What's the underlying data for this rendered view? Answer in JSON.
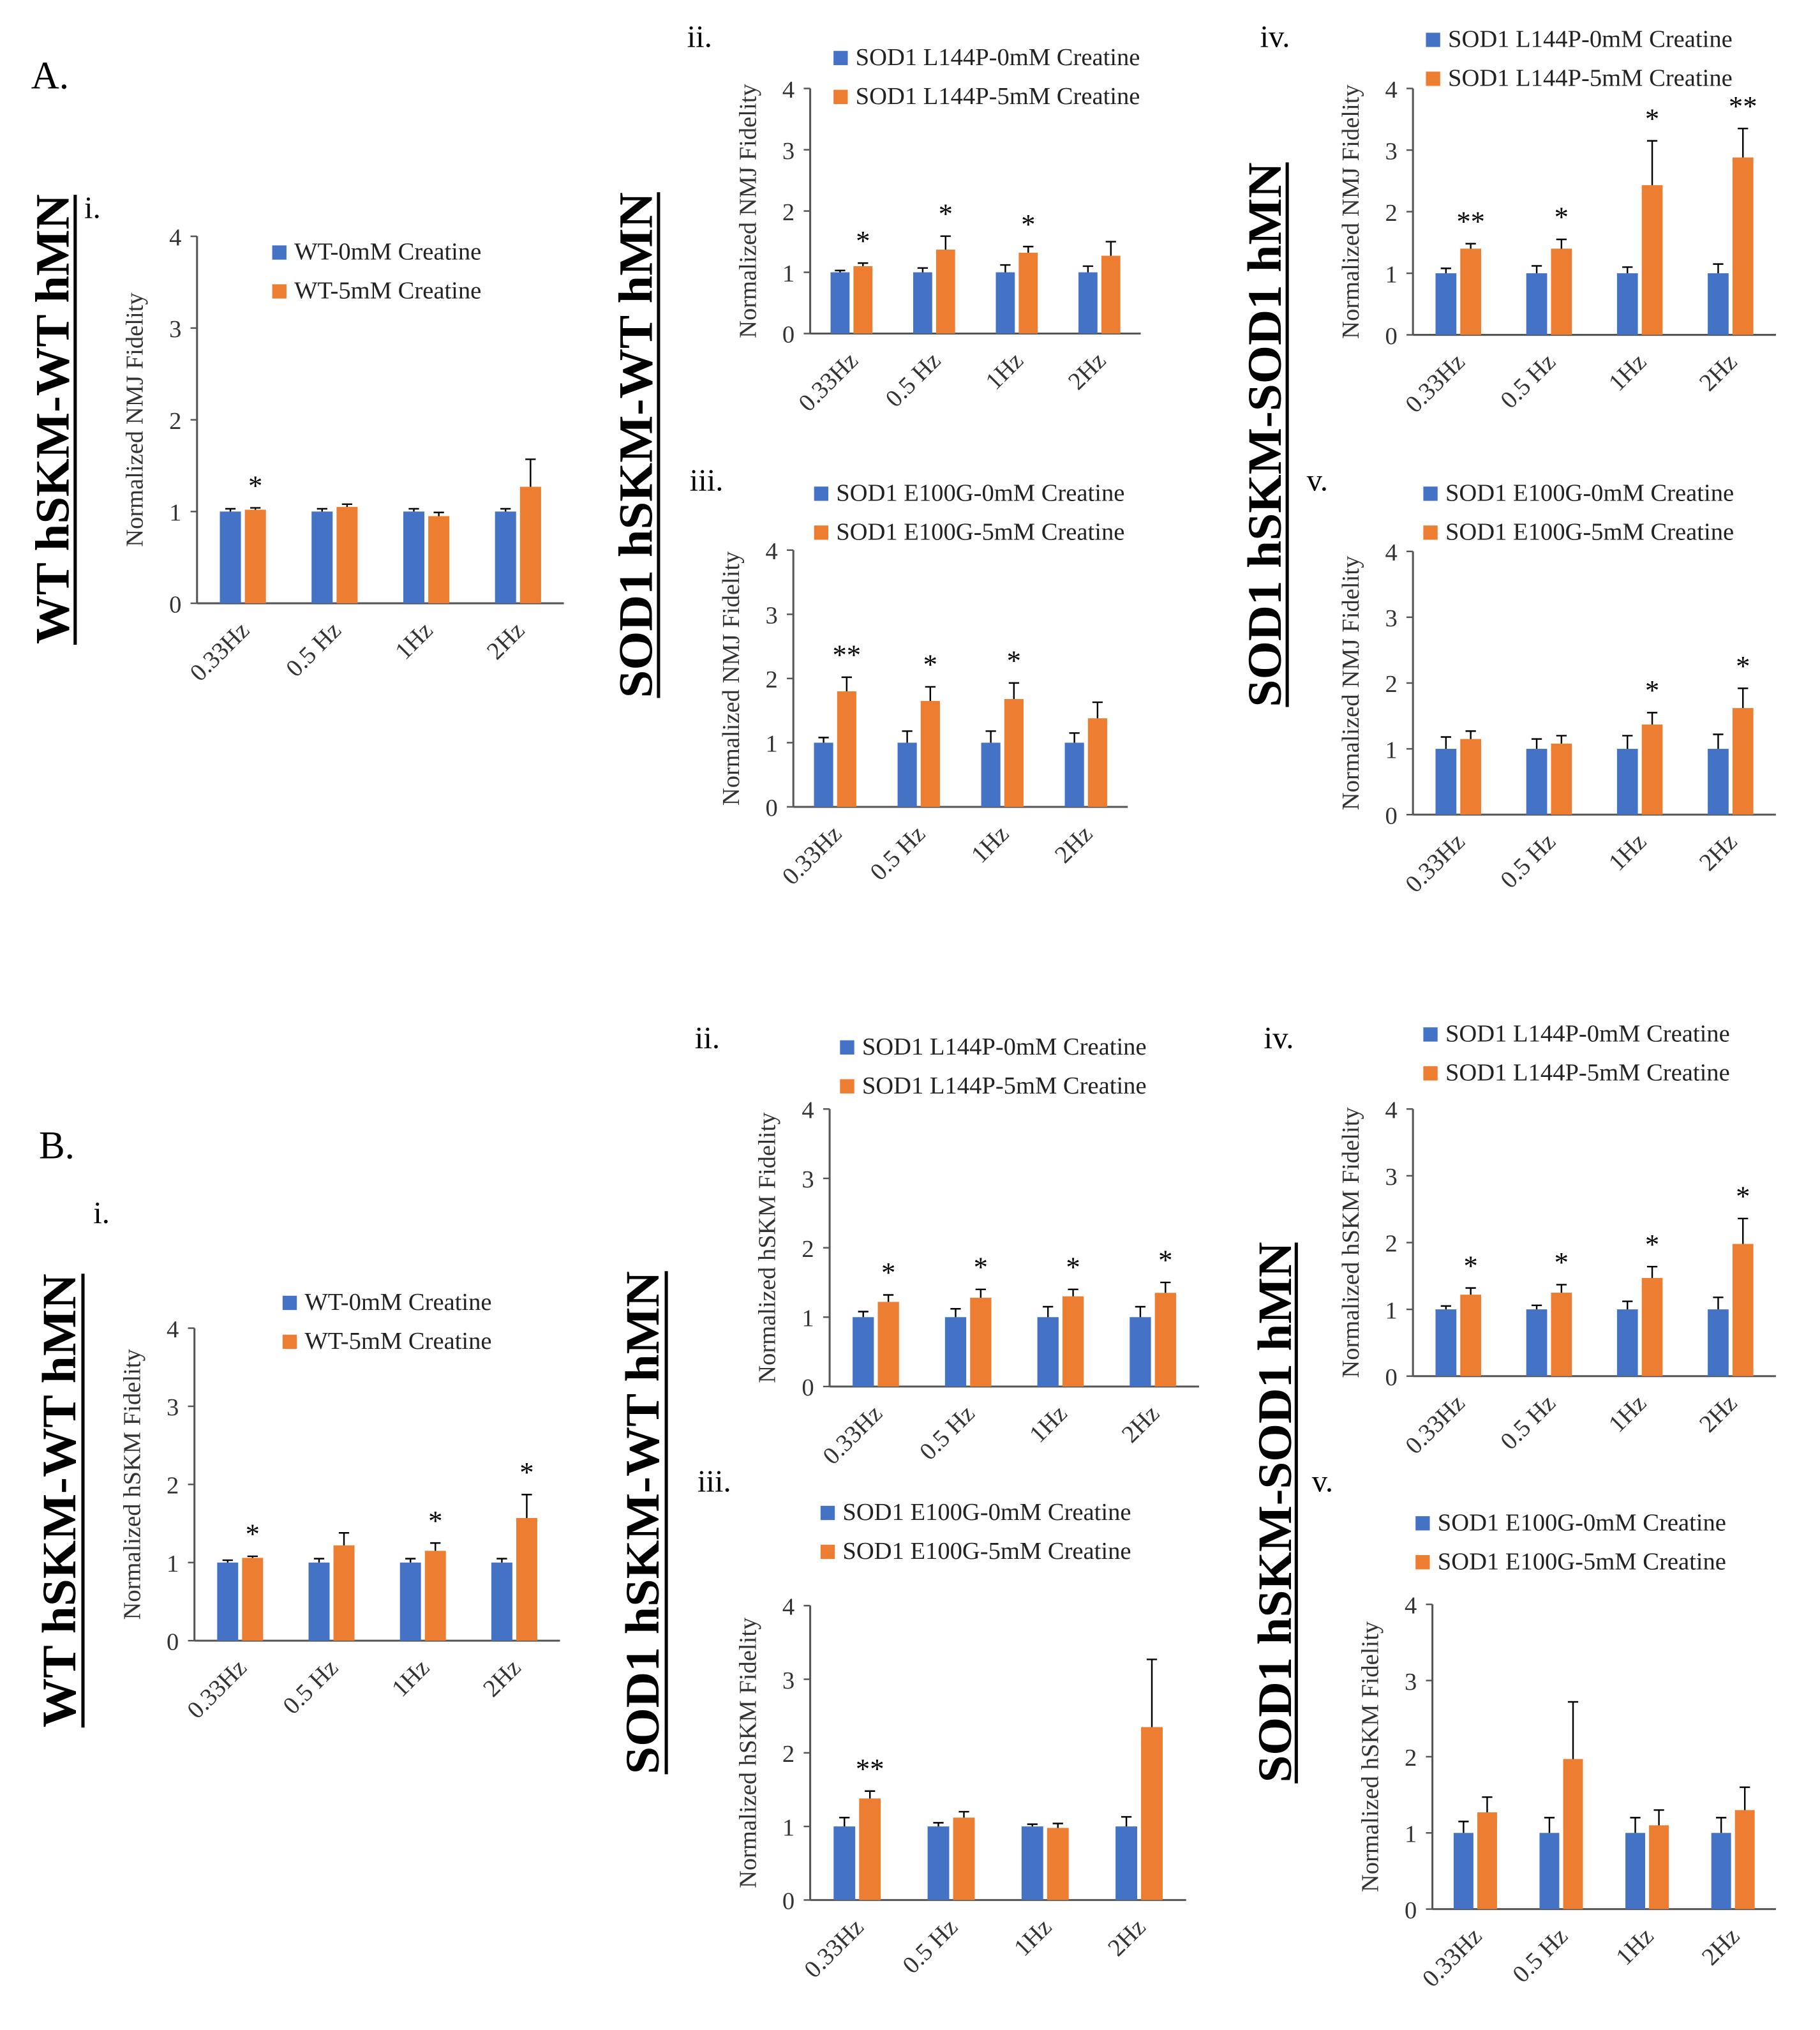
{
  "colors": {
    "control": "#4472C4",
    "creatine": "#ED7D31"
  },
  "section_labels": [
    "A.",
    "B."
  ],
  "side_titles": [
    {
      "text": "WT hSKM-WT hMN"
    },
    {
      "text": "SOD1 hSKM-WT hMN"
    },
    {
      "text": "SOD1 hSKM-SOD1 hMN"
    },
    {
      "text": "WT hSKM-WT hMN"
    },
    {
      "text": "SOD1 hSKM-WT hMN"
    },
    {
      "text": "SOD1 hSKM-SOD1 hMN"
    }
  ],
  "chart_data": [
    {
      "type": "bar",
      "panel": "i.",
      "ylabel": "Normalized NMJ Fidelity",
      "ylim": [
        0,
        4
      ],
      "yticks": [
        0,
        1,
        2,
        3,
        4
      ],
      "categories": [
        "0.33Hz",
        "0.5 Hz",
        "1Hz",
        "2Hz"
      ],
      "series": [
        {
          "name": "WT-0mM Creatine",
          "values": [
            1,
            1,
            1,
            1
          ],
          "errors": [
            0.03,
            0.03,
            0.03,
            0.03
          ]
        },
        {
          "name": "WT-5mM Creatine",
          "values": [
            1.02,
            1.05,
            0.95,
            1.27
          ],
          "errors": [
            0.02,
            0.03,
            0.04,
            0.3
          ]
        }
      ],
      "significance": [
        "*",
        "",
        "",
        ""
      ]
    },
    {
      "type": "bar",
      "panel": "ii.",
      "ylabel": "Normalized NMJ Fidelity",
      "ylim": [
        0,
        4
      ],
      "yticks": [
        0,
        1,
        2,
        3,
        4
      ],
      "categories": [
        "0.33Hz",
        "0.5 Hz",
        "1Hz",
        "2Hz"
      ],
      "series": [
        {
          "name": "SOD1 L144P-0mM Creatine",
          "values": [
            1,
            1,
            1,
            1
          ],
          "errors": [
            0.03,
            0.07,
            0.12,
            0.1
          ]
        },
        {
          "name": "SOD1 L144P-5mM Creatine",
          "values": [
            1.1,
            1.37,
            1.32,
            1.27
          ],
          "errors": [
            0.05,
            0.22,
            0.1,
            0.23
          ]
        }
      ],
      "significance": [
        "*",
        "*",
        "*",
        ""
      ]
    },
    {
      "type": "bar",
      "panel": "iii.",
      "ylabel": "Normalized NMJ Fidelity",
      "ylim": [
        0,
        4
      ],
      "yticks": [
        0,
        1,
        2,
        3,
        4
      ],
      "categories": [
        "0.33Hz",
        "0.5 Hz",
        "1Hz",
        "2Hz"
      ],
      "series": [
        {
          "name": "SOD1 E100G-0mM Creatine",
          "values": [
            1,
            1,
            1,
            1
          ],
          "errors": [
            0.08,
            0.18,
            0.18,
            0.15
          ]
        },
        {
          "name": "SOD1 E100G-5mM Creatine",
          "values": [
            1.8,
            1.65,
            1.68,
            1.38
          ],
          "errors": [
            0.22,
            0.22,
            0.25,
            0.25
          ]
        }
      ],
      "significance": [
        "**",
        "*",
        "*",
        ""
      ]
    },
    {
      "type": "bar",
      "panel": "iv.",
      "ylabel": "Normalized NMJ Fidelity",
      "ylim": [
        0,
        4
      ],
      "yticks": [
        0,
        1,
        2,
        3,
        4
      ],
      "categories": [
        "0.33Hz",
        "0.5 Hz",
        "1Hz",
        "2Hz"
      ],
      "series": [
        {
          "name": "SOD1 L144P-0mM Creatine",
          "values": [
            1,
            1,
            1,
            1
          ],
          "errors": [
            0.08,
            0.12,
            0.1,
            0.15
          ]
        },
        {
          "name": "SOD1 L144P-5mM Creatine",
          "values": [
            1.4,
            1.4,
            2.43,
            2.88
          ],
          "errors": [
            0.08,
            0.15,
            0.72,
            0.47
          ]
        }
      ],
      "significance": [
        "**",
        "*",
        "*",
        "**"
      ]
    },
    {
      "type": "bar",
      "panel": "v.",
      "ylabel": "Normalized NMJ Fidelity",
      "ylim": [
        0,
        4
      ],
      "yticks": [
        0,
        1,
        2,
        3,
        4
      ],
      "categories": [
        "0.33Hz",
        "0.5 Hz",
        "1Hz",
        "2Hz"
      ],
      "series": [
        {
          "name": "SOD1 E100G-0mM Creatine",
          "values": [
            1,
            1,
            1,
            1
          ],
          "errors": [
            0.18,
            0.15,
            0.2,
            0.22
          ]
        },
        {
          "name": "SOD1 E100G-5mM Creatine",
          "values": [
            1.15,
            1.08,
            1.37,
            1.62
          ],
          "errors": [
            0.12,
            0.12,
            0.18,
            0.3
          ]
        }
      ],
      "significance": [
        "",
        "",
        "*",
        "*"
      ]
    },
    {
      "type": "bar",
      "panel": "i.",
      "ylabel": "Normalized hSKM Fidelity",
      "ylim": [
        0,
        4
      ],
      "yticks": [
        0,
        1,
        2,
        3,
        4
      ],
      "categories": [
        "0.33Hz",
        "0.5 Hz",
        "1Hz",
        "2Hz"
      ],
      "series": [
        {
          "name": "WT-0mM Creatine",
          "values": [
            1,
            1,
            1,
            1
          ],
          "errors": [
            0.03,
            0.05,
            0.05,
            0.05
          ]
        },
        {
          "name": "WT-5mM Creatine",
          "values": [
            1.06,
            1.22,
            1.15,
            1.57
          ],
          "errors": [
            0.02,
            0.16,
            0.1,
            0.3
          ]
        }
      ],
      "significance": [
        "*",
        "",
        "*",
        "*"
      ]
    },
    {
      "type": "bar",
      "panel": "ii.",
      "ylabel": "Normalized hSKM Fidelity",
      "ylim": [
        0,
        4
      ],
      "yticks": [
        0,
        1,
        2,
        3,
        4
      ],
      "categories": [
        "0.33Hz",
        "0.5 Hz",
        "1Hz",
        "2Hz"
      ],
      "series": [
        {
          "name": "SOD1 L144P-0mM Creatine",
          "values": [
            1,
            1,
            1,
            1
          ],
          "errors": [
            0.08,
            0.12,
            0.15,
            0.15
          ]
        },
        {
          "name": "SOD1 L144P-5mM Creatine",
          "values": [
            1.22,
            1.28,
            1.3,
            1.35
          ],
          "errors": [
            0.1,
            0.12,
            0.1,
            0.15
          ]
        }
      ],
      "significance": [
        "*",
        "*",
        "*",
        "*"
      ]
    },
    {
      "type": "bar",
      "panel": "iii.",
      "ylabel": "Normalized hSKM Fidelity",
      "ylim": [
        0,
        4
      ],
      "yticks": [
        0,
        1,
        2,
        3,
        4
      ],
      "categories": [
        "0.33Hz",
        "0.5 Hz",
        "1Hz",
        "2Hz"
      ],
      "series": [
        {
          "name": "SOD1 E100G-0mM Creatine",
          "values": [
            1,
            1,
            1,
            1
          ],
          "errors": [
            0.12,
            0.05,
            0.03,
            0.13
          ]
        },
        {
          "name": "SOD1 E100G-5mM Creatine",
          "values": [
            1.38,
            1.12,
            0.98,
            2.35
          ],
          "errors": [
            0.1,
            0.08,
            0.06,
            0.92
          ]
        }
      ],
      "significance": [
        "**",
        "",
        "",
        ""
      ]
    },
    {
      "type": "bar",
      "panel": "iv.",
      "ylabel": "Normalized hSKM Fidelity",
      "ylim": [
        0,
        4
      ],
      "yticks": [
        0,
        1,
        2,
        3,
        4
      ],
      "categories": [
        "0.33Hz",
        "0.5 Hz",
        "1Hz",
        "2Hz"
      ],
      "series": [
        {
          "name": "SOD1 L144P-0mM Creatine",
          "values": [
            1,
            1,
            1,
            1
          ],
          "errors": [
            0.05,
            0.06,
            0.12,
            0.18
          ]
        },
        {
          "name": "SOD1 L144P-5mM Creatine",
          "values": [
            1.22,
            1.25,
            1.47,
            1.98
          ],
          "errors": [
            0.1,
            0.12,
            0.17,
            0.38
          ]
        }
      ],
      "significance": [
        "*",
        "*",
        "*",
        "*"
      ]
    },
    {
      "type": "bar",
      "panel": "v.",
      "ylabel": "Normalized hSKM Fidelity",
      "ylim": [
        0,
        4
      ],
      "yticks": [
        0,
        1,
        2,
        3,
        4
      ],
      "categories": [
        "0.33Hz",
        "0.5 Hz",
        "1Hz",
        "2Hz"
      ],
      "series": [
        {
          "name": "SOD1 E100G-0mM Creatine",
          "values": [
            1,
            1,
            1,
            1
          ],
          "errors": [
            0.15,
            0.2,
            0.2,
            0.2
          ]
        },
        {
          "name": "SOD1 E100G-5mM Creatine",
          "values": [
            1.27,
            1.97,
            1.1,
            1.3
          ],
          "errors": [
            0.2,
            0.75,
            0.2,
            0.3
          ]
        }
      ],
      "significance": [
        "",
        "",
        "",
        ""
      ]
    }
  ]
}
